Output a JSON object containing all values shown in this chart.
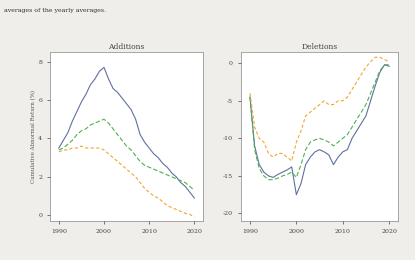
{
  "additions_title": "Additions",
  "deletions_title": "Deletions",
  "ylabel": "Cumulative Abnormal Return (%)",
  "top_text": "averages of the yearly averages.",
  "additions_years": [
    1990,
    1991,
    1992,
    1993,
    1994,
    1995,
    1996,
    1997,
    1998,
    1999,
    2000,
    2001,
    2002,
    2003,
    2004,
    2005,
    2006,
    2007,
    2008,
    2009,
    2010,
    2011,
    2012,
    2013,
    2014,
    2015,
    2016,
    2017,
    2018,
    2019,
    2020
  ],
  "additions_blue": [
    3.5,
    3.9,
    4.3,
    4.9,
    5.4,
    5.9,
    6.3,
    6.8,
    7.1,
    7.5,
    7.7,
    7.1,
    6.6,
    6.4,
    6.1,
    5.8,
    5.5,
    5.0,
    4.2,
    3.8,
    3.5,
    3.2,
    3.0,
    2.7,
    2.5,
    2.2,
    2.0,
    1.7,
    1.5,
    1.2,
    0.9
  ],
  "additions_green": [
    3.4,
    3.5,
    3.7,
    3.9,
    4.2,
    4.4,
    4.5,
    4.7,
    4.8,
    4.9,
    5.0,
    4.8,
    4.5,
    4.2,
    3.9,
    3.6,
    3.4,
    3.1,
    2.8,
    2.6,
    2.5,
    2.4,
    2.3,
    2.2,
    2.1,
    2.0,
    1.9,
    1.8,
    1.7,
    1.5,
    1.3
  ],
  "additions_orange": [
    3.3,
    3.4,
    3.4,
    3.5,
    3.5,
    3.6,
    3.5,
    3.5,
    3.5,
    3.5,
    3.4,
    3.2,
    3.0,
    2.8,
    2.6,
    2.4,
    2.2,
    2.0,
    1.7,
    1.4,
    1.2,
    1.0,
    0.9,
    0.7,
    0.5,
    0.4,
    0.3,
    0.2,
    0.1,
    0.05,
    -0.1
  ],
  "deletions_years": [
    1990,
    1991,
    1992,
    1993,
    1994,
    1995,
    1996,
    1997,
    1998,
    1999,
    2000,
    2001,
    2002,
    2003,
    2004,
    2005,
    2006,
    2007,
    2008,
    2009,
    2010,
    2011,
    2012,
    2013,
    2014,
    2015,
    2016,
    2017,
    2018,
    2019,
    2020
  ],
  "deletions_blue": [
    -4.5,
    -11.0,
    -13.5,
    -14.5,
    -15.0,
    -15.2,
    -14.8,
    -14.5,
    -14.2,
    -13.8,
    -17.5,
    -16.0,
    -13.5,
    -12.5,
    -11.8,
    -11.5,
    -11.8,
    -12.2,
    -13.5,
    -12.5,
    -11.8,
    -11.5,
    -10.0,
    -9.0,
    -8.0,
    -7.0,
    -5.0,
    -3.0,
    -1.2,
    -0.2,
    -0.4
  ],
  "deletions_green": [
    -4.5,
    -11.5,
    -14.0,
    -15.0,
    -15.5,
    -15.5,
    -15.3,
    -15.0,
    -14.8,
    -14.5,
    -15.2,
    -13.5,
    -11.5,
    -10.5,
    -10.2,
    -10.0,
    -10.2,
    -10.5,
    -11.0,
    -10.5,
    -10.0,
    -9.5,
    -8.5,
    -7.5,
    -6.5,
    -5.5,
    -4.0,
    -2.5,
    -1.0,
    -0.2,
    -0.2
  ],
  "deletions_orange": [
    -4.0,
    -8.5,
    -10.0,
    -10.5,
    -12.0,
    -12.5,
    -12.0,
    -12.0,
    -12.5,
    -13.0,
    -10.5,
    -9.0,
    -7.0,
    -6.5,
    -6.0,
    -5.5,
    -5.0,
    -5.5,
    -5.5,
    -5.0,
    -5.0,
    -4.5,
    -3.5,
    -2.5,
    -1.5,
    -0.5,
    0.2,
    0.8,
    0.8,
    0.5,
    0.2
  ],
  "blue_color": "#6070a0",
  "green_color": "#50b050",
  "orange_color": "#f0a830",
  "additions_yticks": [
    0,
    2,
    4,
    6,
    8
  ],
  "deletions_yticks": [
    -20,
    -15,
    -10,
    -5,
    0
  ],
  "xticks": [
    1990,
    2000,
    2010,
    2020
  ],
  "fig_bg": "#f0eeea",
  "plot_bg": "#ffffff",
  "spine_color": "#999999",
  "tick_color": "#444444",
  "title_color": "#444444",
  "label_color": "#555555"
}
